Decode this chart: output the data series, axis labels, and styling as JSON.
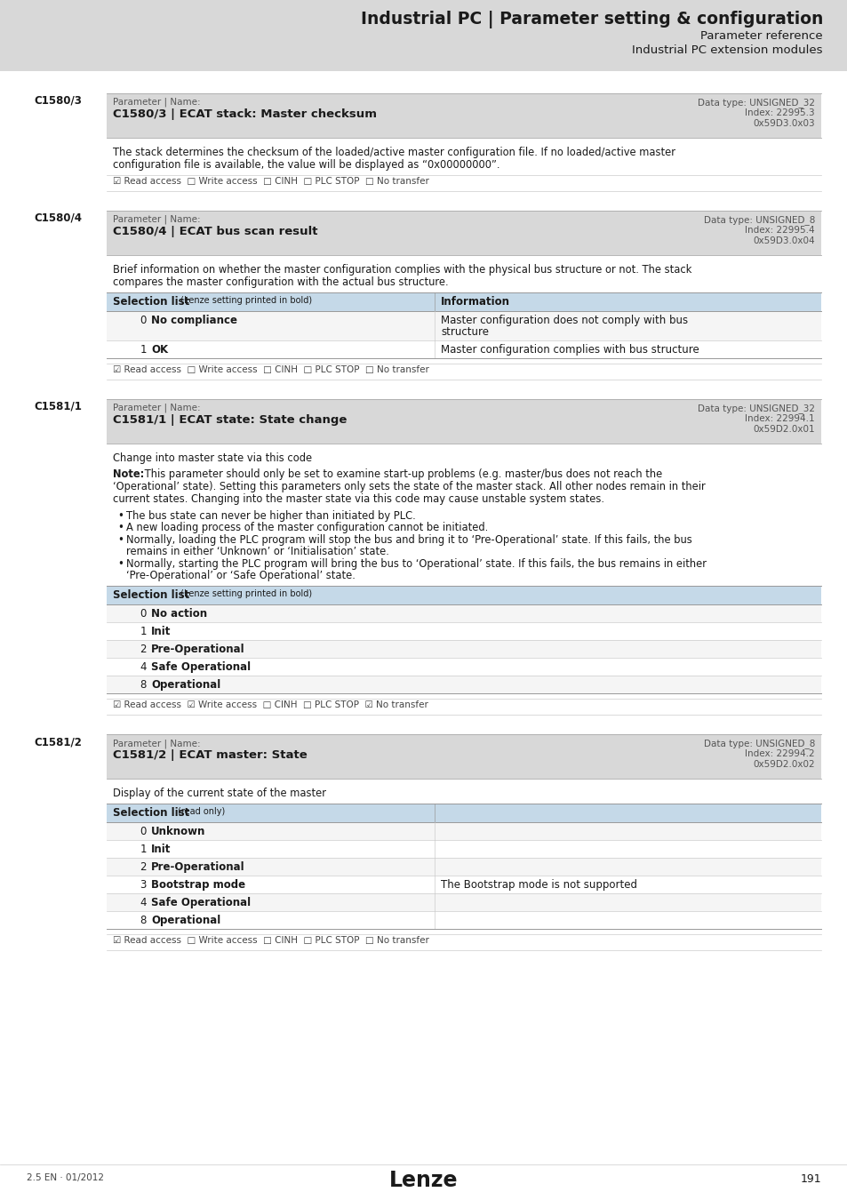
{
  "page_bg": "#e0e0e0",
  "header_bg": "#d8d8d8",
  "param_box_bg": "#d8d8d8",
  "table_header_bg": "#c5d9e8",
  "content_bg": "#ffffff",
  "title_main": "Industrial PC | Parameter setting & configuration",
  "title_sub1": "Parameter reference",
  "title_sub2": "Industrial PC extension modules",
  "footer_left": "2.5 EN · 01/2012",
  "footer_page": "191",
  "footer_logo": "Lenze",
  "sections": [
    {
      "id": "C1580/3",
      "param_label": "Parameter | Name:",
      "param_name": "C1580/3 | ECAT stack: Master checksum",
      "data_type": "Data type: UNSIGNED_32",
      "index_line1": "Index: 22995.3",
      "index_sub1": "d",
      "index_line2": "0x59D3.0x03",
      "index_sub2": "h",
      "description": "The stack determines the checksum of the loaded/active master configuration file. If no loaded/active master\nconfiguration file is available, the value will be displayed as “0x00000000”.",
      "access_line": "☑ Read access  □ Write access  □ CINH  □ PLC STOP  □ No transfer",
      "has_table": false,
      "note": null,
      "bullets": null
    },
    {
      "id": "C1580/4",
      "param_label": "Parameter | Name:",
      "param_name": "C1580/4 | ECAT bus scan result",
      "data_type": "Data type: UNSIGNED_8",
      "index_line1": "Index: 22995.4",
      "index_sub1": "d",
      "index_line2": "0x59D3.0x04",
      "index_sub2": "h",
      "description": "Brief information on whether the master configuration complies with the physical bus structure or not. The stack\ncompares the master configuration with the actual bus structure.",
      "access_line": "☑ Read access  □ Write access  □ CINH  □ PLC STOP  □ No transfer",
      "has_table": true,
      "note": null,
      "bullets": null,
      "table_header": [
        "Selection list",
        " (Lenze setting printed in bold)",
        "Information"
      ],
      "table_split": 0.46,
      "table_rows": [
        [
          "0",
          "No compliance",
          "Master configuration does not comply with bus\nstructure"
        ],
        [
          "1",
          "OK",
          "Master configuration complies with bus structure"
        ]
      ]
    },
    {
      "id": "C1581/1",
      "param_label": "Parameter | Name:",
      "param_name": "C1581/1 | ECAT state: State change",
      "data_type": "Data type: UNSIGNED_32",
      "index_line1": "Index: 22994.1",
      "index_sub1": "d",
      "index_line2": "0x59D2.0x01",
      "index_sub2": "h",
      "description": "Change into master state via this code",
      "access_line": "☑ Read access  ☑ Write access  □ CINH  □ PLC STOP  ☑ No transfer",
      "has_table": true,
      "note": "This parameter should only be set to examine start-up problems (e.g. master/bus does not reach the\n‘Operational’ state). Setting this parameters only sets the state of the master stack. All other nodes remain in their\ncurrent states. Changing into the master state via this code may cause unstable system states.",
      "bullets": [
        "The bus state can never be higher than initiated by PLC.",
        "A new loading process of the master configuration cannot be initiated.",
        "Normally, loading the PLC program will stop the bus and bring it to ‘Pre-Operational’ state. If this fails, the bus\nremains in either ‘Unknown’ or ‘Initialisation’ state.",
        "Normally, starting the PLC program will bring the bus to ‘Operational’ state. If this fails, the bus remains in either\n‘Pre-Operational’ or ‘Safe Operational’ state."
      ],
      "table_header": [
        "Selection list",
        " (Lenze setting printed in bold)",
        ""
      ],
      "table_split": 0.46,
      "table_rows": [
        [
          "0",
          "No action",
          ""
        ],
        [
          "1",
          "Init",
          ""
        ],
        [
          "2",
          "Pre-Operational",
          ""
        ],
        [
          "4",
          "Safe Operational",
          ""
        ],
        [
          "8",
          "Operational",
          ""
        ]
      ]
    },
    {
      "id": "C1581/2",
      "param_label": "Parameter | Name:",
      "param_name": "C1581/2 | ECAT master: State",
      "data_type": "Data type: UNSIGNED_8",
      "index_line1": "Index: 22994.2",
      "index_sub1": "d",
      "index_line2": "0x59D2.0x02",
      "index_sub2": "h",
      "description": "Display of the current state of the master",
      "access_line": "☑ Read access  □ Write access  □ CINH  □ PLC STOP  □ No transfer",
      "has_table": true,
      "note": null,
      "bullets": null,
      "table_header": [
        "Selection list",
        "(read only)",
        ""
      ],
      "table_split": 0.46,
      "table_rows": [
        [
          "0",
          "Unknown",
          ""
        ],
        [
          "1",
          "Init",
          ""
        ],
        [
          "2",
          "Pre-Operational",
          ""
        ],
        [
          "3",
          "Bootstrap mode",
          "The Bootstrap mode is not supported"
        ],
        [
          "4",
          "Safe Operational",
          ""
        ],
        [
          "8",
          "Operational",
          ""
        ]
      ]
    }
  ]
}
